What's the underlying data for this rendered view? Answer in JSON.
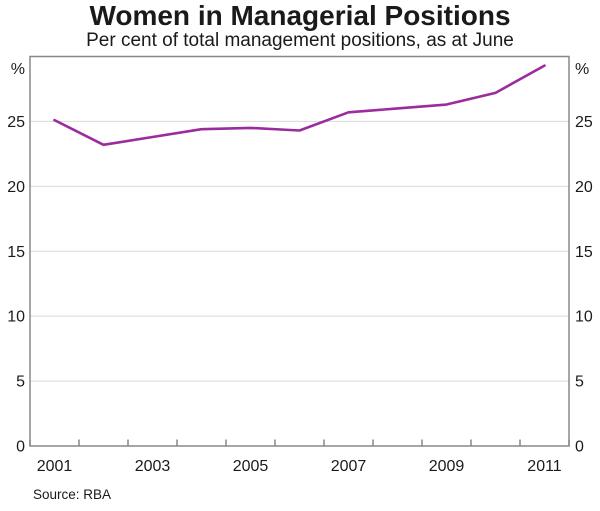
{
  "header": {
    "title": "Women in Managerial Positions",
    "subtitle": "Per cent of total management positions, as at June"
  },
  "footer": {
    "source": "Source: RBA"
  },
  "chart_data": {
    "type": "line",
    "title": "Women in Managerial Positions",
    "subtitle": "Per cent of total management positions, as at June",
    "unit_left": "%",
    "unit_right": "%",
    "x": [
      2001,
      2002,
      2003,
      2004,
      2005,
      2006,
      2007,
      2008,
      2009,
      2010,
      2011
    ],
    "series": [
      {
        "name": "Women in managerial positions",
        "color": "#9A2C9E",
        "values": [
          25.1,
          23.2,
          23.8,
          24.4,
          24.5,
          24.3,
          25.7,
          26.0,
          26.3,
          27.2,
          29.3
        ]
      }
    ],
    "ylim": [
      0,
      30
    ],
    "yticks": [
      0,
      5,
      10,
      15,
      20,
      25
    ],
    "xtick_labels": [
      "2001",
      "2003",
      "2005",
      "2007",
      "2009",
      "2011"
    ],
    "grid": "horizontal",
    "legend": "none",
    "axis_color": "#888888",
    "gridline_color": "#d9d9d9",
    "source": "Source: RBA"
  }
}
